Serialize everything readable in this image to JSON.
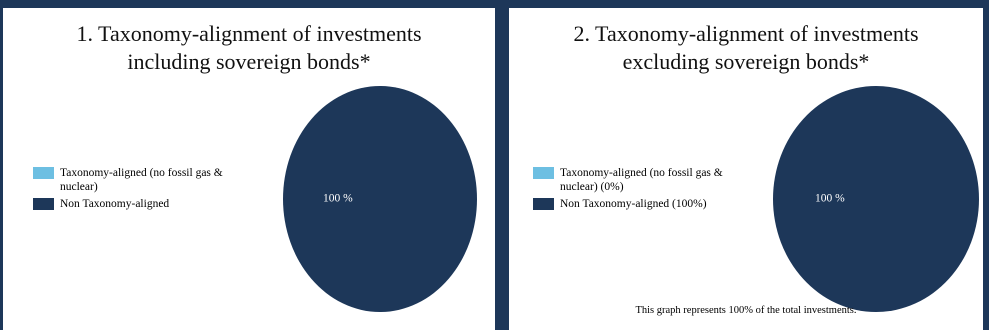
{
  "colors": {
    "background": "#1d3759",
    "aligned": "#6dbfe2",
    "non_aligned": "#1d3759"
  },
  "chart_data": [
    {
      "type": "pie",
      "title_lines": [
        "1. Taxonomy-alignment of investments",
        "including sovereign bonds*"
      ],
      "legend": [
        "Taxonomy-aligned (no fossil gas & nuclear)",
        "Non Taxonomy-aligned"
      ],
      "legend_placement": "left",
      "slices": [
        {
          "label": "Taxonomy-aligned (no fossil gas & nuclear)",
          "value": 0,
          "color": "#6dbfe2"
        },
        {
          "label": "Non Taxonomy-aligned",
          "value": 100,
          "color": "#1d3759",
          "data_label": "100 %"
        }
      ]
    },
    {
      "type": "pie",
      "title_lines": [
        "2. Taxonomy-alignment of investments",
        "excluding sovereign bonds*"
      ],
      "legend": [
        "Taxonomy-aligned (no fossil gas & nuclear) (0%)",
        "Non Taxonomy-aligned (100%)"
      ],
      "legend_placement": "left",
      "slices": [
        {
          "label": "Taxonomy-aligned (no fossil gas & nuclear) (0%)",
          "value": 0,
          "color": "#6dbfe2"
        },
        {
          "label": "Non Taxonomy-aligned (100%)",
          "value": 100,
          "color": "#1d3759",
          "data_label": "100 %"
        }
      ],
      "note": "This graph represents 100% of the total investments."
    }
  ]
}
